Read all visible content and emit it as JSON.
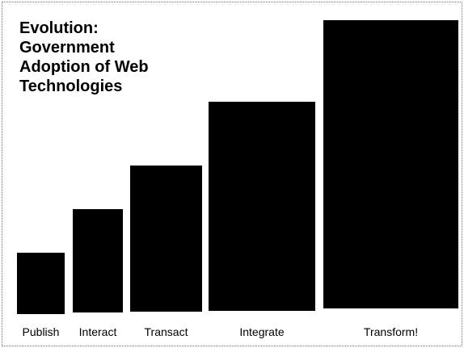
{
  "title": {
    "lines": [
      "Evolution:",
      "Government",
      "Adoption of Web",
      "Technologies"
    ]
  },
  "stages": [
    {
      "label": "Publish",
      "level": 1
    },
    {
      "label": "Interact",
      "level": 2
    },
    {
      "label": "Transact",
      "level": 3
    },
    {
      "label": "Integrate",
      "level": 4
    },
    {
      "label": "Transform!",
      "level": 5
    }
  ],
  "colors": {
    "bar": "#000000",
    "text": "#000000",
    "background": "#ffffff",
    "border": "#6f6f6f"
  }
}
